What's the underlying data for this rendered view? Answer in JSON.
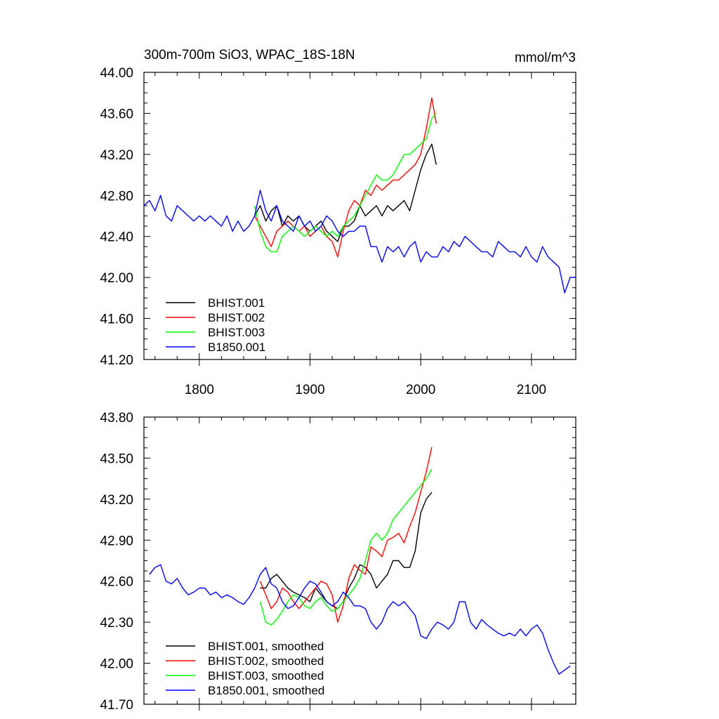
{
  "chart_data": [
    {
      "type": "line",
      "title": "300m-700m SiO3, WPAC_18S-18N",
      "units": "mmol/m^3",
      "xlim": [
        1750,
        2140
      ],
      "ylim": [
        41.2,
        44.0
      ],
      "x_ticks": [
        1800,
        1900,
        2000,
        2100
      ],
      "y_ticks": [
        41.2,
        41.6,
        42.0,
        42.4,
        42.8,
        43.2,
        43.6,
        44.0
      ],
      "y_tick_labels": [
        "41.20",
        "41.60",
        "42.00",
        "42.40",
        "42.80",
        "43.20",
        "43.60",
        "44.00"
      ],
      "legend_placement": "lower-left",
      "series": [
        {
          "name": "BHIST.001",
          "color": "#000000",
          "x": [
            1850,
            1855,
            1860,
            1865,
            1870,
            1875,
            1880,
            1885,
            1890,
            1895,
            1900,
            1905,
            1910,
            1915,
            1920,
            1925,
            1930,
            1935,
            1940,
            1945,
            1950,
            1955,
            1960,
            1965,
            1970,
            1975,
            1980,
            1985,
            1990,
            1995,
            2000,
            2005,
            2010,
            2014
          ],
          "y": [
            42.6,
            42.7,
            42.55,
            42.65,
            42.7,
            42.5,
            42.6,
            42.55,
            42.6,
            42.5,
            42.45,
            42.5,
            42.55,
            42.45,
            42.4,
            42.35,
            42.5,
            42.5,
            42.55,
            42.7,
            42.6,
            42.65,
            42.7,
            42.6,
            42.7,
            42.65,
            42.7,
            42.75,
            42.65,
            42.85,
            43.05,
            43.2,
            43.3,
            43.1
          ]
        },
        {
          "name": "BHIST.002",
          "color": "#ff0000",
          "x": [
            1850,
            1855,
            1860,
            1865,
            1870,
            1875,
            1880,
            1885,
            1890,
            1895,
            1900,
            1905,
            1910,
            1915,
            1920,
            1925,
            1930,
            1935,
            1940,
            1945,
            1950,
            1955,
            1960,
            1965,
            1970,
            1975,
            1980,
            1985,
            1990,
            1995,
            2000,
            2005,
            2010,
            2014
          ],
          "y": [
            42.6,
            42.5,
            42.4,
            42.3,
            42.45,
            42.5,
            42.55,
            42.5,
            42.45,
            42.5,
            42.4,
            42.45,
            42.5,
            42.4,
            42.35,
            42.2,
            42.45,
            42.65,
            42.75,
            42.7,
            42.85,
            42.8,
            42.9,
            42.85,
            42.9,
            42.95,
            42.95,
            43.0,
            43.05,
            43.1,
            43.2,
            43.45,
            43.75,
            43.5
          ]
        },
        {
          "name": "BHIST.003",
          "color": "#00ff00",
          "x": [
            1850,
            1855,
            1860,
            1865,
            1870,
            1875,
            1880,
            1885,
            1890,
            1895,
            1900,
            1905,
            1910,
            1915,
            1920,
            1925,
            1930,
            1935,
            1940,
            1945,
            1950,
            1955,
            1960,
            1965,
            1970,
            1975,
            1980,
            1985,
            1990,
            1995,
            2000,
            2005,
            2010,
            2014
          ],
          "y": [
            42.7,
            42.45,
            42.3,
            42.25,
            42.25,
            42.4,
            42.45,
            42.5,
            42.45,
            42.4,
            42.45,
            42.5,
            42.45,
            42.4,
            42.45,
            42.4,
            42.5,
            42.55,
            42.6,
            42.7,
            42.8,
            42.9,
            43.0,
            42.95,
            42.95,
            43.0,
            43.1,
            43.2,
            43.2,
            43.25,
            43.3,
            43.35,
            43.55,
            43.6
          ]
        },
        {
          "name": "B1850.001",
          "color": "#0000ff",
          "x": [
            1750,
            1755,
            1760,
            1765,
            1770,
            1775,
            1780,
            1785,
            1790,
            1795,
            1800,
            1805,
            1810,
            1815,
            1820,
            1825,
            1830,
            1835,
            1840,
            1845,
            1850,
            1855,
            1860,
            1865,
            1870,
            1875,
            1880,
            1885,
            1890,
            1895,
            1900,
            1905,
            1910,
            1915,
            1920,
            1925,
            1930,
            1935,
            1940,
            1945,
            1950,
            1955,
            1960,
            1965,
            1970,
            1975,
            1980,
            1985,
            1990,
            1995,
            2000,
            2005,
            2010,
            2015,
            2020,
            2025,
            2030,
            2035,
            2040,
            2045,
            2050,
            2055,
            2060,
            2065,
            2070,
            2075,
            2080,
            2085,
            2090,
            2095,
            2100,
            2105,
            2110,
            2115,
            2120,
            2125,
            2130,
            2135,
            2140
          ],
          "y": [
            42.7,
            42.75,
            42.65,
            42.8,
            42.6,
            42.55,
            42.7,
            42.65,
            42.6,
            42.55,
            42.6,
            42.55,
            42.6,
            42.55,
            42.5,
            42.6,
            42.45,
            42.55,
            42.45,
            42.5,
            42.6,
            42.85,
            42.65,
            42.55,
            42.7,
            42.55,
            42.5,
            42.45,
            42.6,
            42.5,
            42.55,
            42.45,
            42.5,
            42.6,
            42.55,
            42.45,
            42.4,
            42.45,
            42.45,
            42.5,
            42.5,
            42.3,
            42.3,
            42.15,
            42.3,
            42.25,
            42.3,
            42.2,
            42.3,
            42.35,
            42.15,
            42.25,
            42.2,
            42.2,
            42.3,
            42.25,
            42.35,
            42.3,
            42.4,
            42.35,
            42.3,
            42.25,
            42.25,
            42.2,
            42.35,
            42.3,
            42.25,
            42.25,
            42.2,
            42.3,
            42.2,
            42.15,
            42.3,
            42.2,
            42.15,
            42.1,
            41.85,
            42.0,
            42.0
          ]
        }
      ]
    },
    {
      "type": "line",
      "title": "",
      "xlim": [
        1750,
        2140
      ],
      "ylim": [
        41.7,
        43.8
      ],
      "x_ticks": [
        1800,
        1900,
        2000,
        2100
      ],
      "y_ticks": [
        41.7,
        42.0,
        42.3,
        42.6,
        42.9,
        43.2,
        43.5,
        43.8
      ],
      "y_tick_labels": [
        "41.70",
        "42.00",
        "42.30",
        "42.60",
        "42.90",
        "43.20",
        "43.50",
        "43.80"
      ],
      "legend_placement": "lower-left",
      "series": [
        {
          "name": "BHIST.001, smoothed",
          "color": "#000000",
          "x": [
            1855,
            1860,
            1865,
            1870,
            1875,
            1880,
            1885,
            1890,
            1895,
            1900,
            1905,
            1910,
            1915,
            1920,
            1925,
            1930,
            1935,
            1940,
            1945,
            1950,
            1955,
            1960,
            1965,
            1970,
            1975,
            1980,
            1985,
            1990,
            1995,
            2000,
            2005,
            2010
          ],
          "y": [
            42.55,
            42.55,
            42.62,
            42.65,
            42.6,
            42.55,
            42.52,
            42.5,
            42.48,
            42.45,
            42.55,
            42.5,
            42.45,
            42.42,
            42.4,
            42.45,
            42.55,
            42.62,
            42.72,
            42.7,
            42.65,
            42.55,
            42.6,
            42.65,
            42.75,
            42.75,
            42.7,
            42.7,
            42.82,
            43.1,
            43.2,
            43.25
          ]
        },
        {
          "name": "BHIST.002, smoothed",
          "color": "#ff0000",
          "x": [
            1855,
            1860,
            1865,
            1870,
            1875,
            1880,
            1885,
            1890,
            1895,
            1900,
            1905,
            1910,
            1915,
            1920,
            1925,
            1930,
            1935,
            1940,
            1945,
            1950,
            1955,
            1960,
            1965,
            1970,
            1975,
            1980,
            1985,
            1990,
            1995,
            2000,
            2005,
            2010
          ],
          "y": [
            42.6,
            42.5,
            42.4,
            42.45,
            42.55,
            42.52,
            42.45,
            42.4,
            42.45,
            42.5,
            42.55,
            42.6,
            42.58,
            42.5,
            42.3,
            42.42,
            42.62,
            42.72,
            42.68,
            42.65,
            42.85,
            42.82,
            42.78,
            42.9,
            42.92,
            42.95,
            42.88,
            43.0,
            43.1,
            43.25,
            43.4,
            43.58
          ]
        },
        {
          "name": "BHIST.003, smoothed",
          "color": "#00ff00",
          "x": [
            1855,
            1860,
            1865,
            1870,
            1875,
            1880,
            1885,
            1890,
            1895,
            1900,
            1905,
            1910,
            1915,
            1920,
            1925,
            1930,
            1935,
            1940,
            1945,
            1950,
            1955,
            1960,
            1965,
            1970,
            1975,
            1980,
            1985,
            1990,
            1995,
            2000,
            2005,
            2010
          ],
          "y": [
            42.45,
            42.3,
            42.28,
            42.32,
            42.38,
            42.45,
            42.5,
            42.48,
            42.42,
            42.4,
            42.45,
            42.48,
            42.42,
            42.38,
            42.4,
            42.45,
            42.5,
            42.55,
            42.62,
            42.75,
            42.9,
            42.95,
            42.9,
            42.95,
            43.05,
            43.1,
            43.15,
            43.2,
            43.25,
            43.3,
            43.35,
            43.42
          ]
        },
        {
          "name": "B1850.001, smoothed",
          "color": "#0000ff",
          "x": [
            1755,
            1760,
            1765,
            1770,
            1775,
            1780,
            1785,
            1790,
            1795,
            1800,
            1805,
            1810,
            1815,
            1820,
            1825,
            1830,
            1835,
            1840,
            1845,
            1850,
            1855,
            1860,
            1865,
            1870,
            1875,
            1880,
            1885,
            1890,
            1895,
            1900,
            1905,
            1910,
            1915,
            1920,
            1925,
            1930,
            1935,
            1940,
            1945,
            1950,
            1955,
            1960,
            1965,
            1970,
            1975,
            1980,
            1985,
            1990,
            1995,
            2000,
            2005,
            2010,
            2015,
            2020,
            2025,
            2030,
            2035,
            2040,
            2045,
            2050,
            2055,
            2060,
            2065,
            2070,
            2075,
            2080,
            2085,
            2090,
            2095,
            2100,
            2105,
            2110,
            2115,
            2120,
            2125,
            2130,
            2135
          ],
          "y": [
            42.65,
            42.7,
            42.72,
            42.6,
            42.58,
            42.62,
            42.55,
            42.5,
            42.52,
            42.55,
            42.55,
            42.5,
            42.52,
            42.48,
            42.5,
            42.48,
            42.45,
            42.43,
            42.48,
            42.55,
            42.65,
            42.7,
            42.58,
            42.55,
            42.45,
            42.4,
            42.42,
            42.48,
            42.55,
            42.6,
            42.58,
            42.52,
            42.45,
            42.42,
            42.45,
            42.52,
            42.48,
            42.42,
            42.42,
            42.4,
            42.3,
            42.25,
            42.3,
            42.4,
            42.45,
            42.42,
            42.45,
            42.4,
            42.35,
            42.2,
            42.18,
            42.25,
            42.3,
            42.28,
            42.25,
            42.3,
            42.45,
            42.45,
            42.3,
            42.25,
            42.32,
            42.28,
            42.25,
            42.22,
            42.2,
            42.22,
            42.2,
            42.25,
            42.2,
            42.25,
            42.28,
            42.22,
            42.1,
            42.0,
            41.92,
            41.95,
            41.98
          ]
        }
      ]
    }
  ]
}
